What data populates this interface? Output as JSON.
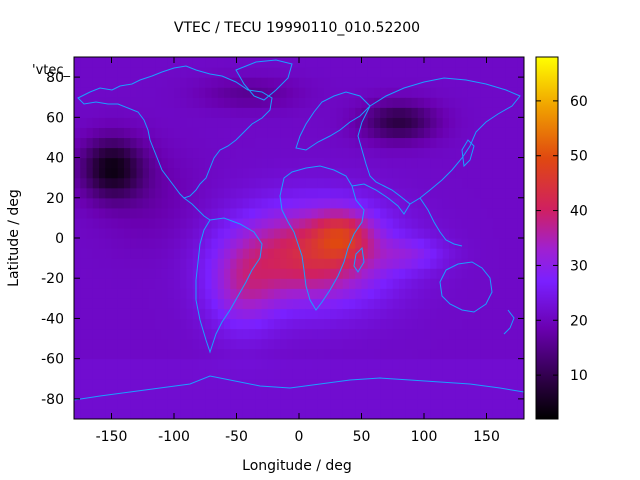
{
  "chart_data": {
    "type": "heatmap",
    "title": "VTEC / TECU 19990110_010.52200",
    "series_label": "'vtec_",
    "xlabel": "Longitude / deg",
    "ylabel": "Latitude / deg",
    "xlim": [
      -180,
      180
    ],
    "ylim": [
      -90,
      90
    ],
    "x_ticks": [
      -150,
      -100,
      -50,
      0,
      50,
      100,
      150
    ],
    "y_ticks": [
      80,
      60,
      40,
      20,
      0,
      -20,
      -40,
      -60,
      -80
    ],
    "x_tick_labels": [
      "-150",
      "-100",
      "-50",
      "0",
      "50",
      "100",
      "150"
    ],
    "y_tick_labels": [
      "80",
      "60",
      "40",
      "20",
      "0",
      "-20",
      "-40",
      "-60",
      "-80"
    ],
    "colorbar": {
      "min": 2,
      "max": 68,
      "ticks": [
        10,
        20,
        30,
        40,
        50,
        60
      ],
      "tick_labels": [
        "10",
        "20",
        "30",
        "40",
        "50",
        "60"
      ]
    },
    "field_features": [
      {
        "name": "peak-africa",
        "lon": 30,
        "lat": 0,
        "vtec": 55
      },
      {
        "name": "south-atlantic",
        "lon": -30,
        "lat": -20,
        "vtec": 40
      },
      {
        "name": "south-america",
        "lon": -55,
        "lat": -25,
        "vtec": 40
      },
      {
        "name": "background",
        "vtec": 22
      },
      {
        "name": "night-trough-n-pacific",
        "lon": -150,
        "lat": 35,
        "vtec": 5
      },
      {
        "name": "night-trough-asia",
        "lon": 80,
        "lat": 55,
        "vtec": 8
      }
    ]
  }
}
